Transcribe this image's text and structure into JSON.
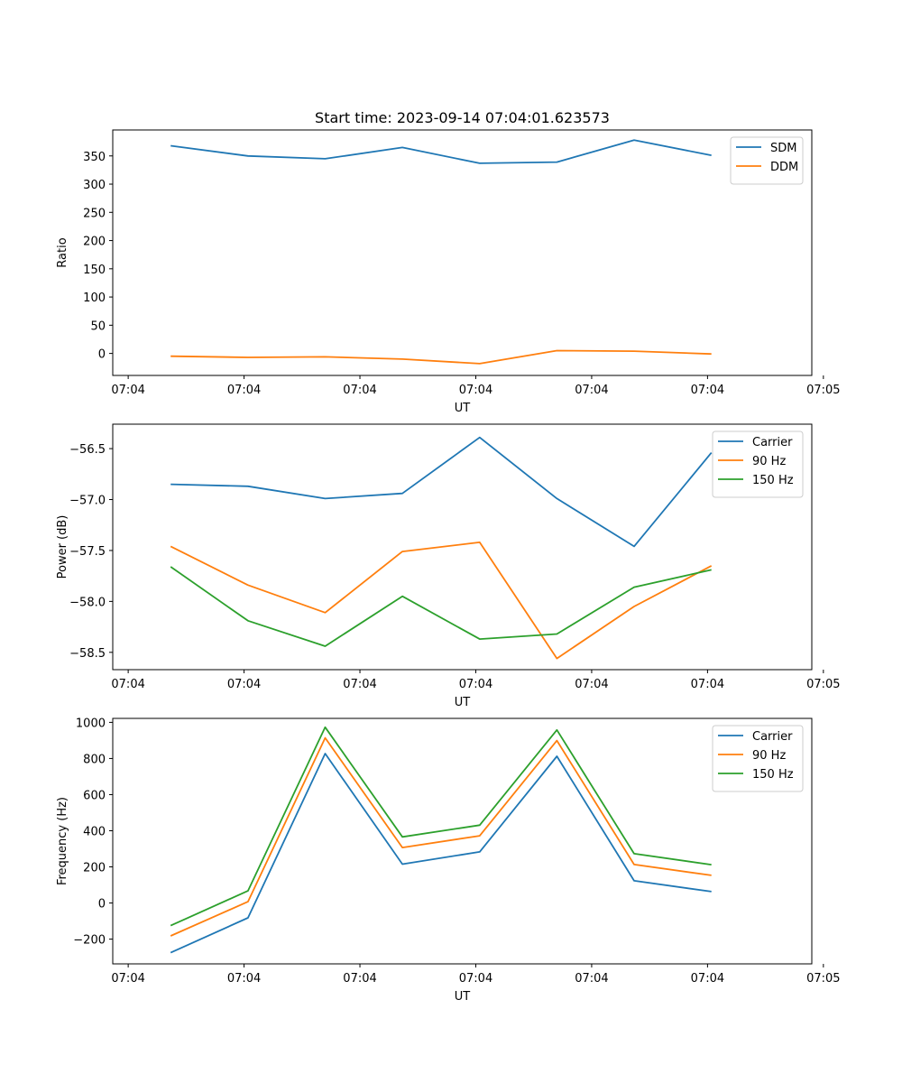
{
  "colors": {
    "blue": "#1f77b4",
    "orange": "#ff7f0e",
    "green": "#2ca02c"
  },
  "chart_data": [
    {
      "type": "line",
      "title": "Start time: 2023-09-14 07:04:01.623573",
      "xlabel": "UT",
      "ylabel": "Ratio",
      "x_tick_labels": [
        "07:04",
        "07:04",
        "07:04",
        "07:04",
        "07:04",
        "07:04",
        "07:05"
      ],
      "y_ticks": [
        0,
        50,
        100,
        150,
        200,
        250,
        300,
        350
      ],
      "y_tick_labels": [
        "0",
        "50",
        "100",
        "150",
        "200",
        "250",
        "300",
        "350"
      ],
      "ylim": [
        -39,
        396
      ],
      "legend": "top-right",
      "x": [
        1,
        2,
        3,
        4,
        5,
        6,
        7,
        8
      ],
      "xlim": [
        0.25,
        9.3
      ],
      "x_tick_values": [
        0.45,
        1.95,
        3.45,
        4.95,
        6.45,
        7.95,
        9.45
      ],
      "series": [
        {
          "name": "SDM",
          "color": "#1f77b4",
          "values": [
            368,
            350,
            345,
            365,
            337,
            339,
            378,
            351
          ]
        },
        {
          "name": "DDM",
          "color": "#ff7f0e",
          "values": [
            -5,
            -7,
            -6,
            -10,
            -18,
            5,
            4,
            -1
          ]
        }
      ]
    },
    {
      "type": "line",
      "title": "",
      "xlabel": "UT",
      "ylabel": "Power (dB)",
      "x_tick_labels": [
        "07:04",
        "07:04",
        "07:04",
        "07:04",
        "07:04",
        "07:04",
        "07:05"
      ],
      "y_ticks": [
        -56.5,
        -57.0,
        -57.5,
        -58.0,
        -58.5
      ],
      "y_tick_labels": [
        "−56.5",
        "−57.0",
        "−57.5",
        "−58.0",
        "−58.5"
      ],
      "ylim": [
        -58.67,
        -56.26
      ],
      "legend": "top-right",
      "x": [
        1,
        2,
        3,
        4,
        5,
        6,
        7,
        8
      ],
      "xlim": [
        0.25,
        9.3
      ],
      "x_tick_values": [
        0.45,
        1.95,
        3.45,
        4.95,
        6.45,
        7.95,
        9.45
      ],
      "series": [
        {
          "name": "Carrier",
          "color": "#1f77b4",
          "values": [
            -56.85,
            -56.87,
            -56.99,
            -56.94,
            -56.39,
            -56.99,
            -57.46,
            -56.54
          ]
        },
        {
          "name": "90 Hz",
          "color": "#ff7f0e",
          "values": [
            -57.46,
            -57.84,
            -58.11,
            -57.51,
            -57.42,
            -58.56,
            -58.05,
            -57.65
          ]
        },
        {
          "name": "150 Hz",
          "color": "#2ca02c",
          "values": [
            -57.66,
            -58.19,
            -58.44,
            -57.95,
            -58.37,
            -58.32,
            -57.86,
            -57.69
          ]
        }
      ]
    },
    {
      "type": "line",
      "title": "",
      "xlabel": "UT",
      "ylabel": "Frequency (Hz)",
      "x_tick_labels": [
        "07:04",
        "07:04",
        "07:04",
        "07:04",
        "07:04",
        "07:04",
        "07:05"
      ],
      "y_ticks": [
        -200,
        0,
        200,
        400,
        600,
        800,
        1000
      ],
      "y_tick_labels": [
        "−200",
        "0",
        "200",
        "400",
        "600",
        "800",
        "1000"
      ],
      "ylim": [
        -337,
        1022
      ],
      "legend": "top-right",
      "x": [
        1,
        2,
        3,
        4,
        5,
        6,
        7,
        8
      ],
      "xlim": [
        0.25,
        9.3
      ],
      "x_tick_values": [
        0.45,
        1.95,
        3.45,
        4.95,
        6.45,
        7.95,
        9.45
      ],
      "series": [
        {
          "name": "Carrier",
          "color": "#1f77b4",
          "values": [
            -275,
            -82,
            827,
            215,
            283,
            812,
            123,
            63
          ]
        },
        {
          "name": "90 Hz",
          "color": "#ff7f0e",
          "values": [
            -182,
            7,
            914,
            307,
            372,
            899,
            213,
            153
          ]
        },
        {
          "name": "150 Hz",
          "color": "#2ca02c",
          "values": [
            -125,
            67,
            973,
            366,
            431,
            958,
            273,
            212
          ]
        }
      ]
    }
  ]
}
